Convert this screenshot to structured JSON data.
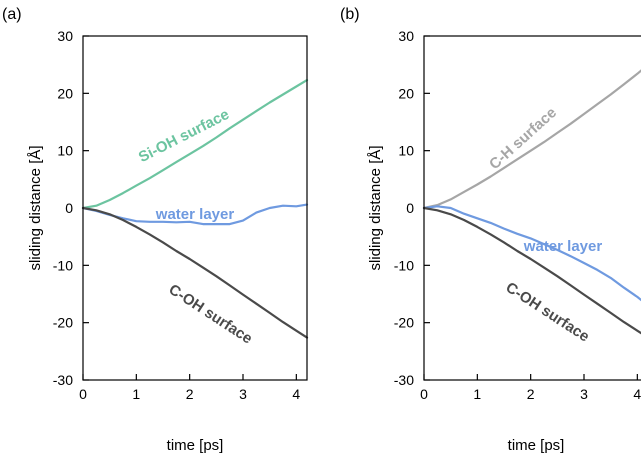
{
  "chart_data": [
    {
      "type": "line",
      "panel_label": "(a)",
      "xlabel": "time [ps]",
      "ylabel": "sliding distance [Å]",
      "xlim": [
        0,
        4.2
      ],
      "ylim": [
        -30,
        30
      ],
      "xticks": [
        "0",
        "1",
        "2",
        "3",
        "4"
      ],
      "yticks": [
        "30",
        "20",
        "10",
        "0",
        "-10",
        "-20",
        "-30"
      ],
      "grid": false,
      "series": [
        {
          "name": "Si-OH surface",
          "color": "#6cc4a0",
          "x": [
            0,
            0.25,
            0.5,
            0.75,
            1.0,
            1.25,
            1.5,
            1.75,
            2.0,
            2.25,
            2.5,
            2.75,
            3.0,
            3.25,
            3.5,
            3.75,
            4.0,
            4.2
          ],
          "y": [
            0,
            0.4,
            1.4,
            2.6,
            3.9,
            5.2,
            6.6,
            8.0,
            9.4,
            10.8,
            12.3,
            13.9,
            15.4,
            16.9,
            18.4,
            19.8,
            21.2,
            22.3
          ]
        },
        {
          "name": "water layer",
          "color": "#6f9ae0",
          "x": [
            0,
            0.25,
            0.5,
            0.75,
            1.0,
            1.25,
            1.5,
            1.75,
            2.0,
            2.25,
            2.5,
            2.75,
            3.0,
            3.25,
            3.5,
            3.75,
            4.0,
            4.2
          ],
          "y": [
            0,
            -0.5,
            -1.2,
            -1.8,
            -2.3,
            -2.4,
            -2.4,
            -2.5,
            -2.4,
            -2.8,
            -2.8,
            -2.8,
            -2.2,
            -0.8,
            0.0,
            0.4,
            0.3,
            0.6
          ]
        },
        {
          "name": "C-OH surface",
          "color": "#4a4a4a",
          "x": [
            0,
            0.25,
            0.5,
            0.75,
            1.0,
            1.25,
            1.5,
            1.75,
            2.0,
            2.25,
            2.5,
            2.75,
            3.0,
            3.25,
            3.5,
            3.75,
            4.0,
            4.2
          ],
          "y": [
            0,
            -0.4,
            -1.1,
            -2.1,
            -3.3,
            -4.6,
            -6.0,
            -7.5,
            -8.9,
            -10.4,
            -11.9,
            -13.5,
            -15.1,
            -16.7,
            -18.3,
            -19.9,
            -21.4,
            -22.6
          ]
        }
      ]
    },
    {
      "type": "line",
      "panel_label": "(b)",
      "xlabel": "time [ps]",
      "ylabel": "sliding distance [Å]",
      "xlim": [
        0,
        4.2
      ],
      "ylim": [
        -30,
        30
      ],
      "xticks": [
        "0",
        "1",
        "2",
        "3",
        "4"
      ],
      "yticks": [
        "30",
        "20",
        "10",
        "0",
        "-10",
        "-20",
        "-30"
      ],
      "grid": false,
      "series": [
        {
          "name": "C-H surface",
          "color": "#a6a6a6",
          "x": [
            0,
            0.25,
            0.5,
            0.75,
            1.0,
            1.25,
            1.5,
            1.75,
            2.0,
            2.25,
            2.5,
            2.75,
            3.0,
            3.25,
            3.5,
            3.75,
            4.0,
            4.2
          ],
          "y": [
            0,
            0.5,
            1.5,
            2.8,
            4.1,
            5.5,
            7.0,
            8.5,
            10.0,
            11.5,
            13.1,
            14.7,
            16.4,
            18.1,
            19.8,
            21.6,
            23.4,
            25.0
          ]
        },
        {
          "name": "water layer",
          "color": "#6f9ae0",
          "x": [
            0,
            0.25,
            0.5,
            0.75,
            1.0,
            1.25,
            1.5,
            1.75,
            2.0,
            2.25,
            2.5,
            2.75,
            3.0,
            3.25,
            3.5,
            3.75,
            4.0,
            4.2
          ],
          "y": [
            0,
            0.3,
            0.0,
            -1.0,
            -1.8,
            -2.6,
            -3.6,
            -4.5,
            -5.3,
            -6.3,
            -7.3,
            -8.4,
            -9.6,
            -10.8,
            -12.2,
            -13.9,
            -15.5,
            -17.0
          ]
        },
        {
          "name": "C-OH surface",
          "color": "#4a4a4a",
          "x": [
            0,
            0.25,
            0.5,
            0.75,
            1.0,
            1.25,
            1.5,
            1.75,
            2.0,
            2.25,
            2.5,
            2.75,
            3.0,
            3.25,
            3.5,
            3.75,
            4.0,
            4.2
          ],
          "y": [
            0,
            -0.4,
            -1.1,
            -2.1,
            -3.3,
            -4.6,
            -6.0,
            -7.5,
            -8.9,
            -10.4,
            -11.9,
            -13.5,
            -15.1,
            -16.7,
            -18.3,
            -19.9,
            -21.4,
            -22.6
          ]
        }
      ]
    }
  ]
}
